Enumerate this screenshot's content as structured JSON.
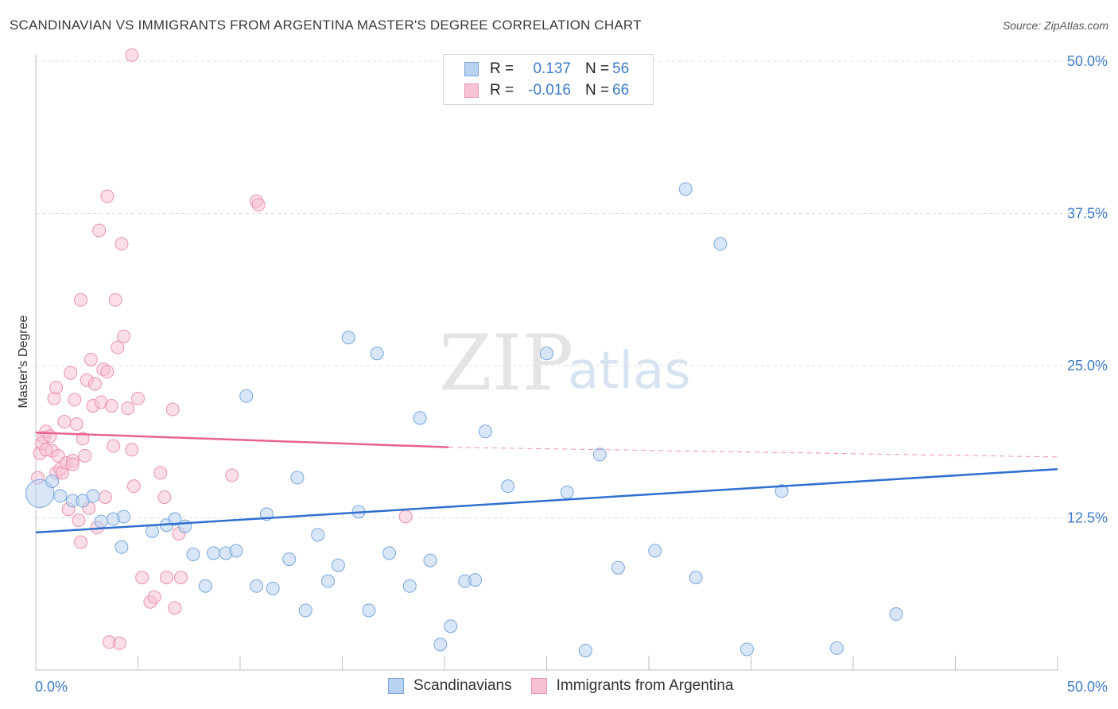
{
  "title": "SCANDINAVIAN VS IMMIGRANTS FROM ARGENTINA MASTER'S DEGREE CORRELATION CHART",
  "source": "Source: ZipAtlas.com",
  "legend": {
    "rows": [
      {
        "r_label": "R =",
        "r_value": "0.137",
        "n_label": "N =",
        "n_value": "56"
      },
      {
        "r_label": "R =",
        "r_value": "-0.016",
        "n_label": "N =",
        "n_value": "66"
      }
    ]
  },
  "bottom_legend": [
    "Scandinavians",
    "Immigrants from Argentina"
  ],
  "watermark": {
    "zip": "ZIP",
    "atlas": "atlas"
  },
  "colors": {
    "blue_fill": "#b8d2f2",
    "blue_stroke": "#7aa6dc",
    "blue_line": "#2f6fcf",
    "pink_fill": "#f7c3d3",
    "pink_stroke": "#e993b0",
    "pink_line": "#e8638f",
    "axis_text": "#3d7cc9",
    "grid": "#dcdcdc"
  },
  "chart_data": {
    "type": "scatter",
    "title": "SCANDINAVIAN VS IMMIGRANTS FROM ARGENTINA MASTER'S DEGREE CORRELATION CHART",
    "xlabel": "",
    "ylabel": "Master's Degree",
    "xlim": [
      0,
      50
    ],
    "ylim": [
      0,
      50
    ],
    "x_tick_labels": [
      "0.0%",
      "50.0%"
    ],
    "y_tick_labels": [
      "12.5%",
      "25.0%",
      "37.5%",
      "50.0%"
    ],
    "y_ticks": [
      12.5,
      25.0,
      37.5,
      50.0
    ],
    "x_ticks": [
      0,
      5,
      10,
      15,
      20,
      25,
      30,
      35,
      40,
      45,
      50
    ],
    "grid": "horizontal-dashed",
    "legend_position": "top-center",
    "series": [
      {
        "name": "Scandinavians",
        "trend": {
          "x": [
            0,
            50
          ],
          "y": [
            11.3,
            16.5
          ],
          "style": "solid"
        },
        "points": [
          [
            0.2,
            14.5,
            2.2
          ],
          [
            0.8,
            15.5,
            1
          ],
          [
            1.2,
            14.3,
            1
          ],
          [
            1.8,
            13.9,
            1
          ],
          [
            2.3,
            13.9,
            1
          ],
          [
            2.8,
            14.3,
            1
          ],
          [
            3.2,
            12.2,
            1
          ],
          [
            3.8,
            12.4,
            1
          ],
          [
            4.2,
            10.1,
            1
          ],
          [
            4.3,
            12.6,
            1
          ],
          [
            5.7,
            11.4,
            1
          ],
          [
            6.4,
            11.9,
            1
          ],
          [
            6.8,
            12.4,
            1
          ],
          [
            7.3,
            11.8,
            1
          ],
          [
            7.7,
            9.5,
            1
          ],
          [
            8.3,
            6.9,
            1
          ],
          [
            8.7,
            9.6,
            1
          ],
          [
            9.3,
            9.6,
            1
          ],
          [
            9.8,
            9.8,
            1
          ],
          [
            10.3,
            22.5,
            1
          ],
          [
            10.8,
            6.9,
            1
          ],
          [
            11.3,
            12.8,
            1
          ],
          [
            11.6,
            6.7,
            1
          ],
          [
            12.4,
            9.1,
            1
          ],
          [
            12.8,
            15.8,
            1
          ],
          [
            13.2,
            4.9,
            1
          ],
          [
            13.8,
            11.1,
            1
          ],
          [
            14.3,
            7.3,
            1
          ],
          [
            14.8,
            8.6,
            1
          ],
          [
            15.3,
            27.3,
            1
          ],
          [
            15.8,
            13.0,
            1
          ],
          [
            16.3,
            4.9,
            1
          ],
          [
            16.7,
            26.0,
            1
          ],
          [
            17.3,
            9.6,
            1
          ],
          [
            18.3,
            6.9,
            1
          ],
          [
            18.8,
            20.7,
            1
          ],
          [
            19.3,
            9.0,
            1
          ],
          [
            19.8,
            2.1,
            1
          ],
          [
            20.3,
            3.6,
            1
          ],
          [
            21.0,
            7.3,
            1
          ],
          [
            21.5,
            7.4,
            1
          ],
          [
            22.0,
            19.6,
            1
          ],
          [
            23.1,
            15.1,
            1
          ],
          [
            25.0,
            26.0,
            1
          ],
          [
            26.0,
            14.6,
            1
          ],
          [
            26.9,
            1.6,
            1
          ],
          [
            27.6,
            17.7,
            1
          ],
          [
            28.5,
            8.4,
            1
          ],
          [
            30.3,
            9.8,
            1
          ],
          [
            31.8,
            39.5,
            1
          ],
          [
            32.3,
            7.6,
            1
          ],
          [
            33.5,
            35.0,
            1
          ],
          [
            34.8,
            1.7,
            1
          ],
          [
            36.5,
            14.7,
            1
          ],
          [
            39.2,
            1.8,
            1
          ],
          [
            42.1,
            4.6,
            1
          ]
        ]
      },
      {
        "name": "Immigrants from Argentina",
        "trend": {
          "x": [
            0,
            20.2
          ],
          "y": [
            19.5,
            18.3
          ],
          "style": "solid",
          "dashed_to": [
            50,
            17.5
          ]
        },
        "points": [
          [
            0.1,
            15.8,
            1
          ],
          [
            0.2,
            17.8,
            1
          ],
          [
            0.3,
            18.6,
            1
          ],
          [
            0.4,
            19.1,
            1
          ],
          [
            0.5,
            19.6,
            1
          ],
          [
            0.7,
            19.2,
            1
          ],
          [
            0.8,
            18.0,
            1
          ],
          [
            0.9,
            22.3,
            1
          ],
          [
            1.0,
            23.2,
            1
          ],
          [
            1.0,
            16.2,
            1
          ],
          [
            1.1,
            17.6,
            1
          ],
          [
            1.2,
            16.5,
            1
          ],
          [
            1.3,
            16.2,
            1
          ],
          [
            1.4,
            20.4,
            1
          ],
          [
            1.5,
            17.0,
            1
          ],
          [
            1.6,
            13.2,
            1
          ],
          [
            1.7,
            24.4,
            1
          ],
          [
            1.8,
            17.2,
            1
          ],
          [
            1.8,
            16.9,
            1
          ],
          [
            1.9,
            22.2,
            1
          ],
          [
            2.0,
            20.2,
            1
          ],
          [
            2.1,
            12.3,
            1
          ],
          [
            2.2,
            10.5,
            1
          ],
          [
            2.2,
            30.4,
            1
          ],
          [
            2.3,
            19.0,
            1
          ],
          [
            2.4,
            17.6,
            1
          ],
          [
            2.5,
            23.8,
            1
          ],
          [
            2.6,
            13.3,
            1
          ],
          [
            2.7,
            25.5,
            1
          ],
          [
            2.8,
            21.7,
            1
          ],
          [
            2.9,
            23.5,
            1
          ],
          [
            3.0,
            11.7,
            1
          ],
          [
            3.1,
            36.1,
            1
          ],
          [
            3.2,
            22.0,
            1
          ],
          [
            3.3,
            24.7,
            1
          ],
          [
            3.4,
            14.2,
            1
          ],
          [
            3.5,
            24.5,
            1
          ],
          [
            3.5,
            38.9,
            1
          ],
          [
            3.6,
            2.3,
            1
          ],
          [
            3.7,
            21.7,
            1
          ],
          [
            3.8,
            18.4,
            1
          ],
          [
            3.9,
            30.4,
            1
          ],
          [
            4.0,
            26.5,
            1
          ],
          [
            4.1,
            2.2,
            1
          ],
          [
            4.2,
            35.0,
            1
          ],
          [
            4.3,
            27.4,
            1
          ],
          [
            4.5,
            21.5,
            1
          ],
          [
            4.7,
            18.1,
            1
          ],
          [
            4.7,
            50.5,
            1
          ],
          [
            4.8,
            15.1,
            1
          ],
          [
            5.0,
            22.3,
            1
          ],
          [
            5.2,
            7.6,
            1
          ],
          [
            5.6,
            5.6,
            1
          ],
          [
            5.8,
            6.0,
            1
          ],
          [
            6.1,
            16.2,
            1
          ],
          [
            6.3,
            14.2,
            1
          ],
          [
            6.4,
            7.6,
            1
          ],
          [
            6.7,
            21.4,
            1
          ],
          [
            6.8,
            5.1,
            1
          ],
          [
            7.0,
            11.2,
            1
          ],
          [
            7.1,
            7.6,
            1
          ],
          [
            9.6,
            16.0,
            1
          ],
          [
            10.8,
            38.5,
            1
          ],
          [
            10.9,
            38.2,
            1
          ],
          [
            18.1,
            12.6,
            1
          ],
          [
            0.5,
            18.1,
            1
          ]
        ]
      }
    ]
  }
}
